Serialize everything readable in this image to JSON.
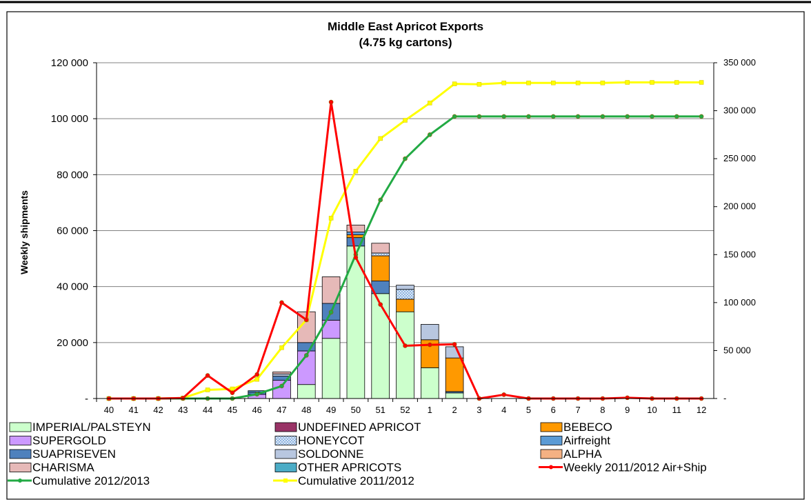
{
  "chart_data": {
    "type": "bar",
    "title": "Middle East Apricot Exports",
    "subtitle": "(4.75 kg cartons)",
    "ylabel": "Weekly shipments",
    "y2label": "",
    "ylim": [
      0,
      120000
    ],
    "y2lim": [
      0,
      350000
    ],
    "yticks": [
      "-",
      "20 000",
      "40 000",
      "60 000",
      "80 000",
      "100 000",
      "120 000"
    ],
    "y2ticks": [
      "-",
      "50 000",
      "100 000",
      "150 000",
      "200 000",
      "250 000",
      "300 000",
      "350 000"
    ],
    "grid": true,
    "legend_position": "bottom",
    "categories": [
      "40",
      "41",
      "42",
      "43",
      "44",
      "45",
      "46",
      "47",
      "48",
      "49",
      "50",
      "51",
      "52",
      "1",
      "2",
      "3",
      "4",
      "5",
      "6",
      "7",
      "8",
      "9",
      "10",
      "11",
      "12"
    ],
    "bar_series": [
      {
        "name": "IMPERIAL/PALSTEYN",
        "color": "#ccffcc",
        "pattern": "",
        "values": [
          0,
          0,
          0,
          0,
          0,
          0,
          0,
          0,
          5000,
          21500,
          54500,
          37500,
          31000,
          11000,
          2000,
          0,
          0,
          0,
          0,
          0,
          0,
          0,
          0,
          0,
          0
        ]
      },
      {
        "name": "SUPERGOLD",
        "color": "#cc99ff",
        "pattern": "",
        "values": [
          0,
          0,
          0,
          0,
          0,
          0,
          1500,
          6500,
          12000,
          6500,
          0,
          0,
          0,
          0,
          0,
          0,
          0,
          0,
          0,
          0,
          0,
          0,
          0,
          0,
          0
        ]
      },
      {
        "name": "SUAPRISEVEN",
        "color": "#4f81bd",
        "pattern": "",
        "values": [
          0,
          0,
          0,
          0,
          0,
          0,
          800,
          1500,
          3000,
          6000,
          3000,
          4500,
          0,
          0,
          500,
          0,
          0,
          0,
          0,
          0,
          0,
          0,
          0,
          0,
          0
        ]
      },
      {
        "name": "BEBECO",
        "color": "#ff9900",
        "pattern": "",
        "values": [
          0,
          0,
          0,
          0,
          0,
          0,
          0,
          0,
          0,
          0,
          1000,
          9000,
          4500,
          10000,
          12000,
          0,
          0,
          0,
          0,
          0,
          0,
          0,
          0,
          0,
          0
        ]
      },
      {
        "name": "HONEYCOT",
        "color": "#dbe9f7",
        "pattern": "dots",
        "values": [
          0,
          0,
          0,
          0,
          0,
          0,
          0,
          0,
          0,
          0,
          0,
          1000,
          3500,
          0,
          0,
          0,
          0,
          0,
          0,
          0,
          0,
          0,
          0,
          0,
          0
        ]
      },
      {
        "name": "Airfreight",
        "color": "#5b9bd5",
        "pattern": "",
        "values": [
          0,
          0,
          0,
          0,
          0,
          0,
          500,
          0,
          0,
          0,
          1000,
          0,
          0,
          0,
          0,
          0,
          0,
          0,
          0,
          0,
          0,
          0,
          0,
          0,
          0
        ]
      },
      {
        "name": "SOLDONNE",
        "color": "#b8c7e0",
        "pattern": "",
        "values": [
          0,
          0,
          0,
          0,
          0,
          0,
          0,
          800,
          0,
          0,
          0,
          0,
          1500,
          5500,
          4000,
          0,
          0,
          0,
          0,
          0,
          0,
          0,
          0,
          0,
          0
        ]
      },
      {
        "name": "CHARISMA",
        "color": "#e6b9b8",
        "pattern": "",
        "values": [
          0,
          0,
          0,
          0,
          0,
          0,
          0,
          700,
          11000,
          9500,
          2500,
          3500,
          0,
          0,
          0,
          0,
          0,
          0,
          0,
          0,
          0,
          0,
          0,
          0,
          0
        ]
      },
      {
        "name": "UNDEFINED APRICOT",
        "color": "#993366",
        "pattern": "",
        "values": [
          0,
          0,
          0,
          0,
          0,
          0,
          0,
          0,
          0,
          0,
          0,
          0,
          0,
          0,
          0,
          0,
          0,
          0,
          0,
          0,
          0,
          0,
          0,
          0,
          0
        ]
      },
      {
        "name": "ALPHA",
        "color": "#f4b183",
        "pattern": "",
        "values": [
          0,
          0,
          0,
          0,
          0,
          0,
          0,
          0,
          0,
          0,
          0,
          0,
          0,
          0,
          0,
          0,
          0,
          0,
          0,
          0,
          0,
          0,
          0,
          0,
          0
        ]
      },
      {
        "name": "OTHER APRICOTS",
        "color": "#4bacc6",
        "pattern": "",
        "values": [
          0,
          0,
          0,
          0,
          0,
          0,
          0,
          0,
          0,
          0,
          0,
          0,
          0,
          0,
          0,
          0,
          0,
          0,
          0,
          0,
          0,
          0,
          0,
          0,
          0
        ]
      }
    ],
    "line_series": [
      {
        "name": "Weekly 2011/2012 Air+Ship",
        "axis": "right",
        "color": "#ff0000",
        "values": [
          0,
          0,
          0,
          500,
          24000,
          6000,
          25000,
          100000,
          82000,
          309000,
          147000,
          98000,
          55000,
          56000,
          56500,
          0,
          4000,
          0,
          0,
          0,
          0,
          800,
          0,
          0,
          0
        ]
      },
      {
        "name": "Cumulative 2012/2013",
        "axis": "right",
        "color": "#22aa44",
        "values": [
          0,
          0,
          0,
          0,
          0,
          0,
          4500,
          13000,
          45000,
          90000,
          150000,
          207000,
          250000,
          275000,
          294000,
          294000,
          294000,
          294000,
          294000,
          294000,
          294000,
          294000,
          294000,
          294000,
          294000
        ]
      },
      {
        "name": "Cumulative 2011/2012",
        "axis": "right",
        "color": "#ffff00",
        "values": [
          0,
          0,
          0,
          500,
          9000,
          10000,
          20000,
          53000,
          82000,
          188000,
          237000,
          271000,
          290000,
          308000,
          328000,
          327500,
          329000,
          329000,
          329000,
          329000,
          329000,
          329500,
          329500,
          329500,
          329500
        ]
      }
    ],
    "legend": {
      "rows": [
        [
          "IMPERIAL/PALSTEYN",
          "UNDEFINED APRICOT",
          "BEBECO"
        ],
        [
          "SUPERGOLD",
          "HONEYCOT",
          "Airfreight"
        ],
        [
          "SUAPRISEVEN",
          "SOLDONNE",
          "ALPHA"
        ],
        [
          "CHARISMA",
          "OTHER APRICOTS",
          "Weekly 2011/2012 Air+Ship"
        ],
        [
          "Cumulative 2012/2013",
          "Cumulative 2011/2012"
        ]
      ]
    }
  }
}
